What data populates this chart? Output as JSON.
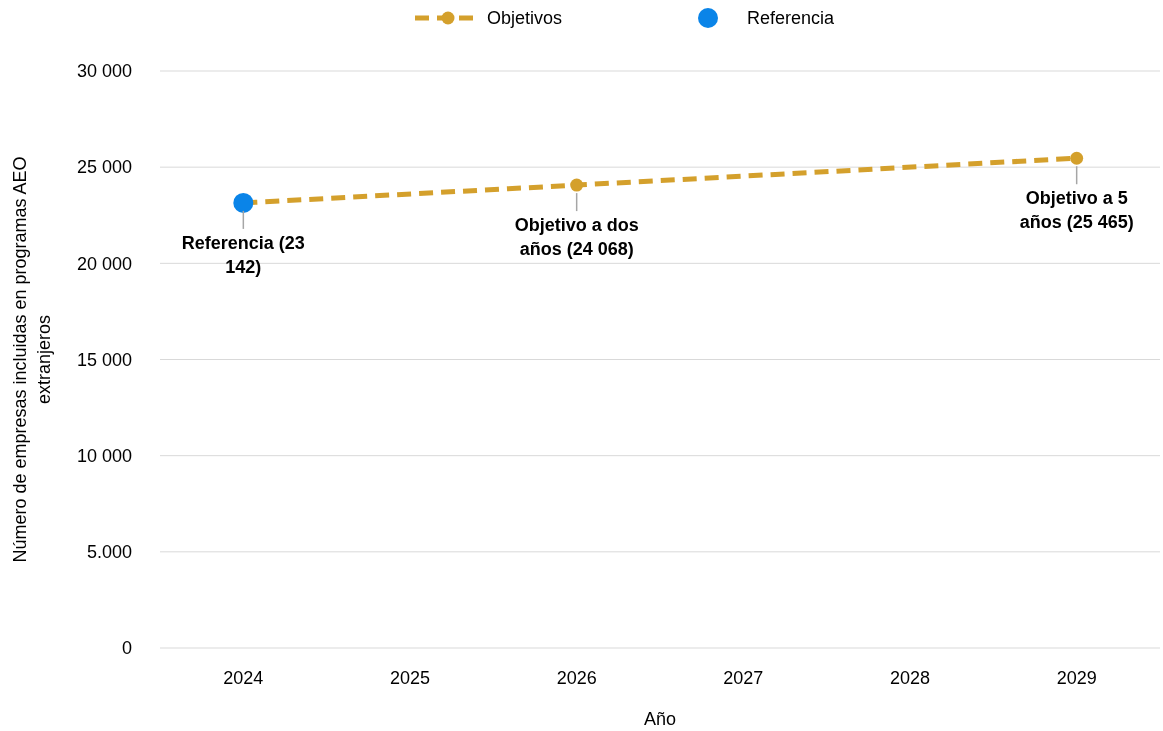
{
  "chart_data": {
    "type": "line",
    "xlabel": "Año",
    "ylabel": "Número de empresas incluidas en programas AEO extranjeros",
    "xlim": [
      2023.5,
      2029.5
    ],
    "xticks": [
      2024,
      2025,
      2026,
      2027,
      2028,
      2029
    ],
    "ylim": [
      0,
      30000
    ],
    "yticks": [
      {
        "value": 0,
        "label": "0"
      },
      {
        "value": 5000,
        "label": "5.000"
      },
      {
        "value": 10000,
        "label": "10 000"
      },
      {
        "value": 15000,
        "label": "15 000"
      },
      {
        "value": 20000,
        "label": "20 000"
      },
      {
        "value": 25000,
        "label": "25 000"
      },
      {
        "value": 30000,
        "label": "30 000"
      }
    ],
    "series": [
      {
        "name": "Objetivos",
        "color": "#d4a02c",
        "x": [
          2024,
          2026,
          2029
        ],
        "values": [
          23142,
          24068,
          25465
        ],
        "marker": "circle",
        "line_style": "dashed"
      },
      {
        "name": "Referencia",
        "type": "scatter",
        "color": "#0a84e8",
        "x": [
          2024
        ],
        "values": [
          23142
        ],
        "marker": "circle"
      }
    ],
    "annotations": [
      {
        "text": "Referencia (23 142)",
        "x": 2024,
        "y": 23142
      },
      {
        "text": "Objetivo a dos años (24 068)",
        "x": 2026,
        "y": 24068
      },
      {
        "text": "Objetivo a 5 años (25 465)",
        "x": 2029,
        "y": 25465
      }
    ],
    "grid": "y",
    "legend": "top"
  }
}
